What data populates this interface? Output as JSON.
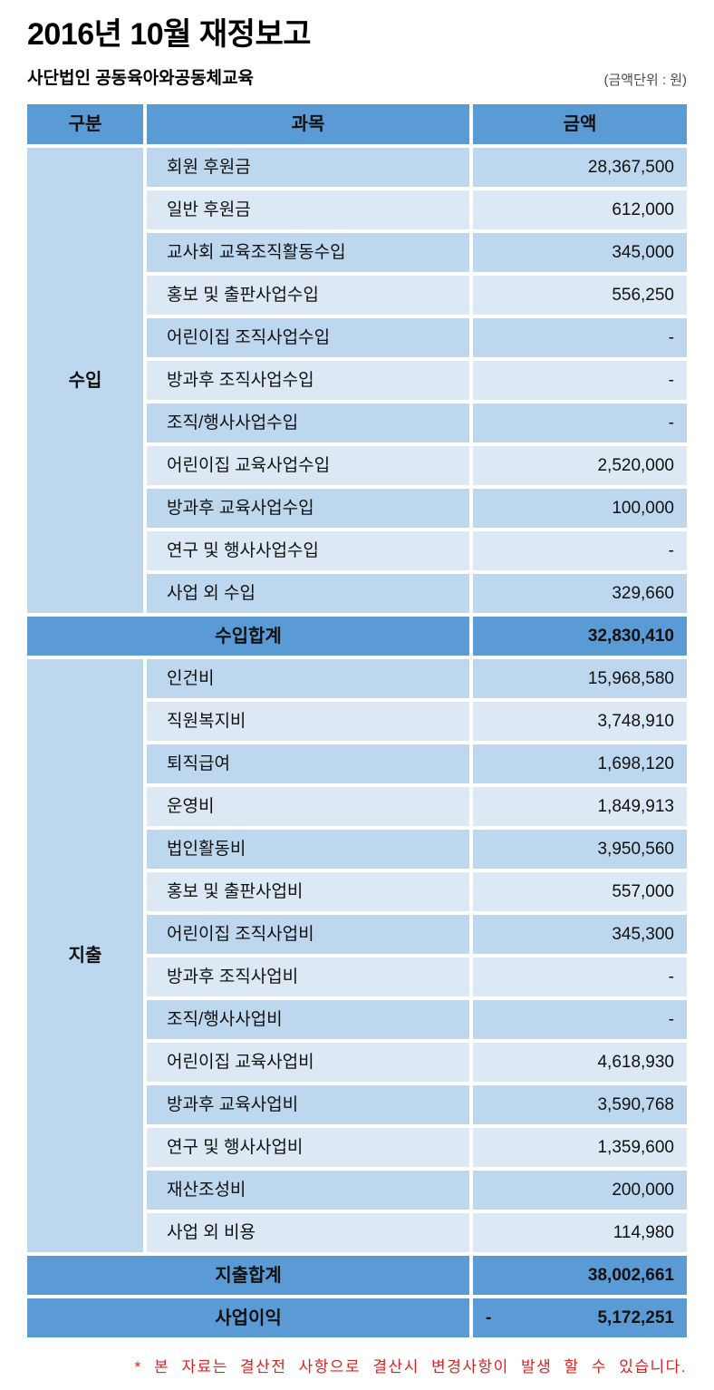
{
  "title": "2016년 10월 재정보고",
  "org_name": "사단법인 공동육아와공동체교육",
  "unit_note": "(금액단위 : 원)",
  "table": {
    "columns": [
      "구분",
      "과목",
      "금액"
    ],
    "sections": [
      {
        "group_label": "수입",
        "rows": [
          {
            "label": "회원 후원금",
            "amount": "28,367,500"
          },
          {
            "label": "일반 후원금",
            "amount": "612,000"
          },
          {
            "label": "교사회 교육조직활동수입",
            "amount": "345,000"
          },
          {
            "label": "홍보 및 출판사업수입",
            "amount": "556,250"
          },
          {
            "label": "어린이집 조직사업수입",
            "amount": "-"
          },
          {
            "label": "방과후 조직사업수입",
            "amount": "-"
          },
          {
            "label": "조직/행사사업수입",
            "amount": "-"
          },
          {
            "label": "어린이집 교육사업수입",
            "amount": "2,520,000"
          },
          {
            "label": "방과후 교육사업수입",
            "amount": "100,000"
          },
          {
            "label": "연구 및 행사사업수입",
            "amount": "-"
          },
          {
            "label": "사업 외 수입",
            "amount": "329,660"
          }
        ],
        "total": {
          "label": "수입합계",
          "amount": "32,830,410"
        }
      },
      {
        "group_label": "지출",
        "rows": [
          {
            "label": "인건비",
            "amount": "15,968,580"
          },
          {
            "label": "직원복지비",
            "amount": "3,748,910"
          },
          {
            "label": "퇴직급여",
            "amount": "1,698,120"
          },
          {
            "label": "운영비",
            "amount": "1,849,913"
          },
          {
            "label": "법인활동비",
            "amount": "3,950,560"
          },
          {
            "label": "홍보 및 출판사업비",
            "amount": "557,000"
          },
          {
            "label": "어린이집 조직사업비",
            "amount": "345,300"
          },
          {
            "label": "방과후 조직사업비",
            "amount": "-"
          },
          {
            "label": "조직/행사사업비",
            "amount": "-"
          },
          {
            "label": "어린이집 교육사업비",
            "amount": "4,618,930"
          },
          {
            "label": "방과후 교육사업비",
            "amount": "3,590,768"
          },
          {
            "label": "연구 및 행사사업비",
            "amount": "1,359,600"
          },
          {
            "label": "재산조성비",
            "amount": "200,000"
          },
          {
            "label": "사업 외 비용",
            "amount": "114,980"
          }
        ],
        "total": {
          "label": "지출합계",
          "amount": "38,002,661"
        }
      }
    ],
    "profit_row": {
      "label": "사업이익",
      "negative_sign": "-",
      "amount": "5,172,251"
    }
  },
  "footnote": "* 본 자료는 결산전 사항으로 결산시 변경사항이 발생 할 수 있습니다.",
  "colors": {
    "header_bg": "#5B9BD5",
    "band_dark": "#BDD7EE",
    "band_light": "#DCE9F5",
    "total_bg": "#5B9BD5",
    "footnote_red": "#E02020"
  }
}
